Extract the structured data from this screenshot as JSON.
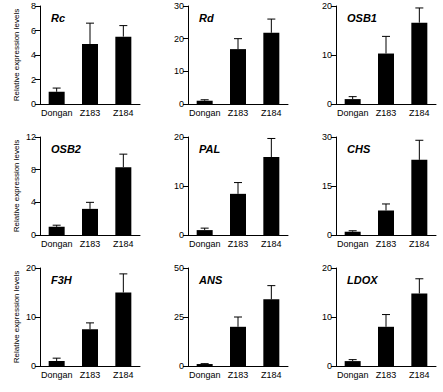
{
  "chart_data": [
    {
      "type": "bar",
      "title": "Rc",
      "ylabel": "Relative expression levels",
      "categories": [
        "Dongan",
        "Z183",
        "Z184"
      ],
      "values": [
        1.0,
        4.9,
        5.5
      ],
      "errors": [
        0.3,
        1.7,
        0.9
      ],
      "color": "#000000",
      "ylim": [
        0,
        8
      ],
      "yticks": [
        0,
        2,
        4,
        6,
        8
      ],
      "grid": false
    },
    {
      "type": "bar",
      "title": "Rd",
      "categories": [
        "Dongan",
        "Z183",
        "Z184"
      ],
      "values": [
        1.0,
        16.8,
        21.8
      ],
      "errors": [
        0.3,
        3.2,
        4.2
      ],
      "color": "#000000",
      "ylim": [
        0,
        30
      ],
      "yticks": [
        0,
        10,
        20,
        30
      ],
      "grid": false
    },
    {
      "type": "bar",
      "title": "OSB1",
      "categories": [
        "Dongan",
        "Z183",
        "Z184"
      ],
      "values": [
        1.0,
        10.3,
        16.6
      ],
      "errors": [
        0.5,
        3.5,
        3.0
      ],
      "color": "#000000",
      "ylim": [
        0,
        20
      ],
      "yticks": [
        0,
        10,
        20
      ],
      "grid": false
    },
    {
      "type": "bar",
      "title": "OSB2",
      "ylabel": "Relative expression levels",
      "categories": [
        "Dongan",
        "Z183",
        "Z184"
      ],
      "values": [
        1.0,
        3.2,
        8.3
      ],
      "errors": [
        0.2,
        0.8,
        1.6
      ],
      "color": "#000000",
      "ylim": [
        0,
        12
      ],
      "yticks": [
        0,
        4,
        8,
        12
      ],
      "grid": false
    },
    {
      "type": "bar",
      "title": "PAL",
      "categories": [
        "Dongan",
        "Z183",
        "Z184"
      ],
      "values": [
        1.0,
        8.4,
        15.9
      ],
      "errors": [
        0.4,
        2.3,
        3.8
      ],
      "color": "#000000",
      "ylim": [
        0,
        20
      ],
      "yticks": [
        0,
        10,
        20
      ],
      "grid": false
    },
    {
      "type": "bar",
      "title": "CHS",
      "categories": [
        "Dongan",
        "Z183",
        "Z184"
      ],
      "values": [
        1.0,
        7.5,
        23.0
      ],
      "errors": [
        0.3,
        2.0,
        6.0
      ],
      "color": "#000000",
      "ylim": [
        0,
        30
      ],
      "yticks": [
        0,
        15,
        30
      ],
      "grid": false
    },
    {
      "type": "bar",
      "title": "F3H",
      "ylabel": "Relative expression levels",
      "categories": [
        "Dongan",
        "Z183",
        "Z184"
      ],
      "values": [
        1.0,
        7.5,
        15.0
      ],
      "errors": [
        0.6,
        1.3,
        3.8
      ],
      "color": "#000000",
      "ylim": [
        0,
        20
      ],
      "yticks": [
        0,
        10,
        20
      ],
      "grid": false
    },
    {
      "type": "bar",
      "title": "ANS",
      "categories": [
        "Dongan",
        "Z183",
        "Z184"
      ],
      "values": [
        1.0,
        20.0,
        34.0
      ],
      "errors": [
        0.2,
        5.0,
        7.0
      ],
      "color": "#000000",
      "ylim": [
        0,
        50
      ],
      "yticks": [
        0,
        25,
        50
      ],
      "grid": false
    },
    {
      "type": "bar",
      "title": "LDOX",
      "categories": [
        "Dongan",
        "Z183",
        "Z184"
      ],
      "values": [
        1.0,
        8.0,
        14.8
      ],
      "errors": [
        0.3,
        2.5,
        3.0
      ],
      "color": "#000000",
      "ylim": [
        0,
        20
      ],
      "yticks": [
        0,
        10,
        20
      ],
      "grid": false
    }
  ]
}
